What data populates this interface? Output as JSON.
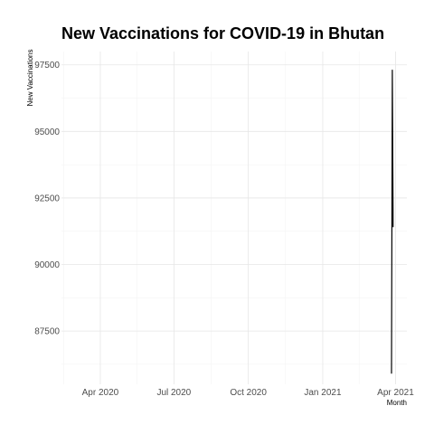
{
  "chart_data": {
    "type": "line",
    "title": "New Vaccinations for COVID-19 in Bhutan",
    "xlabel": "Month",
    "ylabel": "New Vaccinations",
    "x_ticks": [
      {
        "date": "2020-04-01",
        "label": "Apr 2020"
      },
      {
        "date": "2020-07-01",
        "label": "Jul 2020"
      },
      {
        "date": "2020-10-01",
        "label": "Oct 2020"
      },
      {
        "date": "2021-01-01",
        "label": "Jan 2021"
      },
      {
        "date": "2021-04-01",
        "label": "Apr 2021"
      }
    ],
    "y_ticks": [
      87500,
      90000,
      92500,
      95000,
      97500
    ],
    "xlim": [
      "2020-02-13",
      "2021-04-15"
    ],
    "ylim": [
      85500,
      98000
    ],
    "grid": true,
    "series": [
      {
        "color": "#000000",
        "x": [
          "2021-03-27",
          "2021-03-28",
          "2021-03-29"
        ],
        "y": [
          85900,
          97300,
          91400
        ]
      }
    ]
  }
}
